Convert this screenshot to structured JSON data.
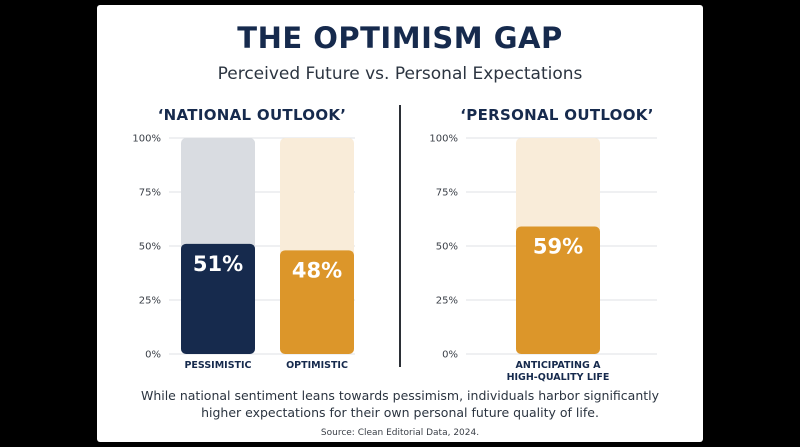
{
  "title": "THE OPTIMISM GAP",
  "subtitle": "Perceived Future vs. Personal Expectations",
  "caption": "While national sentiment leans towards pessimism, individuals harbor significantly higher expectations for their own personal future quality of life.",
  "source": "Source: Clean Editorial Data, 2024.",
  "colors": {
    "navy": "#162a4d",
    "orange": "#dc962a",
    "grey_track": "#d9dce1",
    "orange_track": "#f9ecd9"
  },
  "chart_data": [
    {
      "type": "bar",
      "title": "‘NATIONAL OUTLOOK’",
      "categories": [
        "PESSIMISTIC",
        "OPTIMISTIC"
      ],
      "values": [
        51,
        48
      ],
      "value_labels": [
        "51%",
        "48%"
      ],
      "ylim": [
        0,
        100
      ],
      "yticks": [
        "0%",
        "25%",
        "50%",
        "75%",
        "100%"
      ],
      "grid": true
    },
    {
      "type": "bar",
      "title": "‘PERSONAL OUTLOOK’",
      "categories": [
        "ANTICIPATING A HIGH-QUALITY LIFE"
      ],
      "category_lines": [
        [
          "ANTICIPATING A",
          "HIGH-QUALITY LIFE"
        ]
      ],
      "values": [
        59
      ],
      "value_labels": [
        "59%"
      ],
      "ylim": [
        0,
        100
      ],
      "yticks": [
        "0%",
        "25%",
        "50%",
        "75%",
        "100%"
      ],
      "grid": true
    }
  ]
}
